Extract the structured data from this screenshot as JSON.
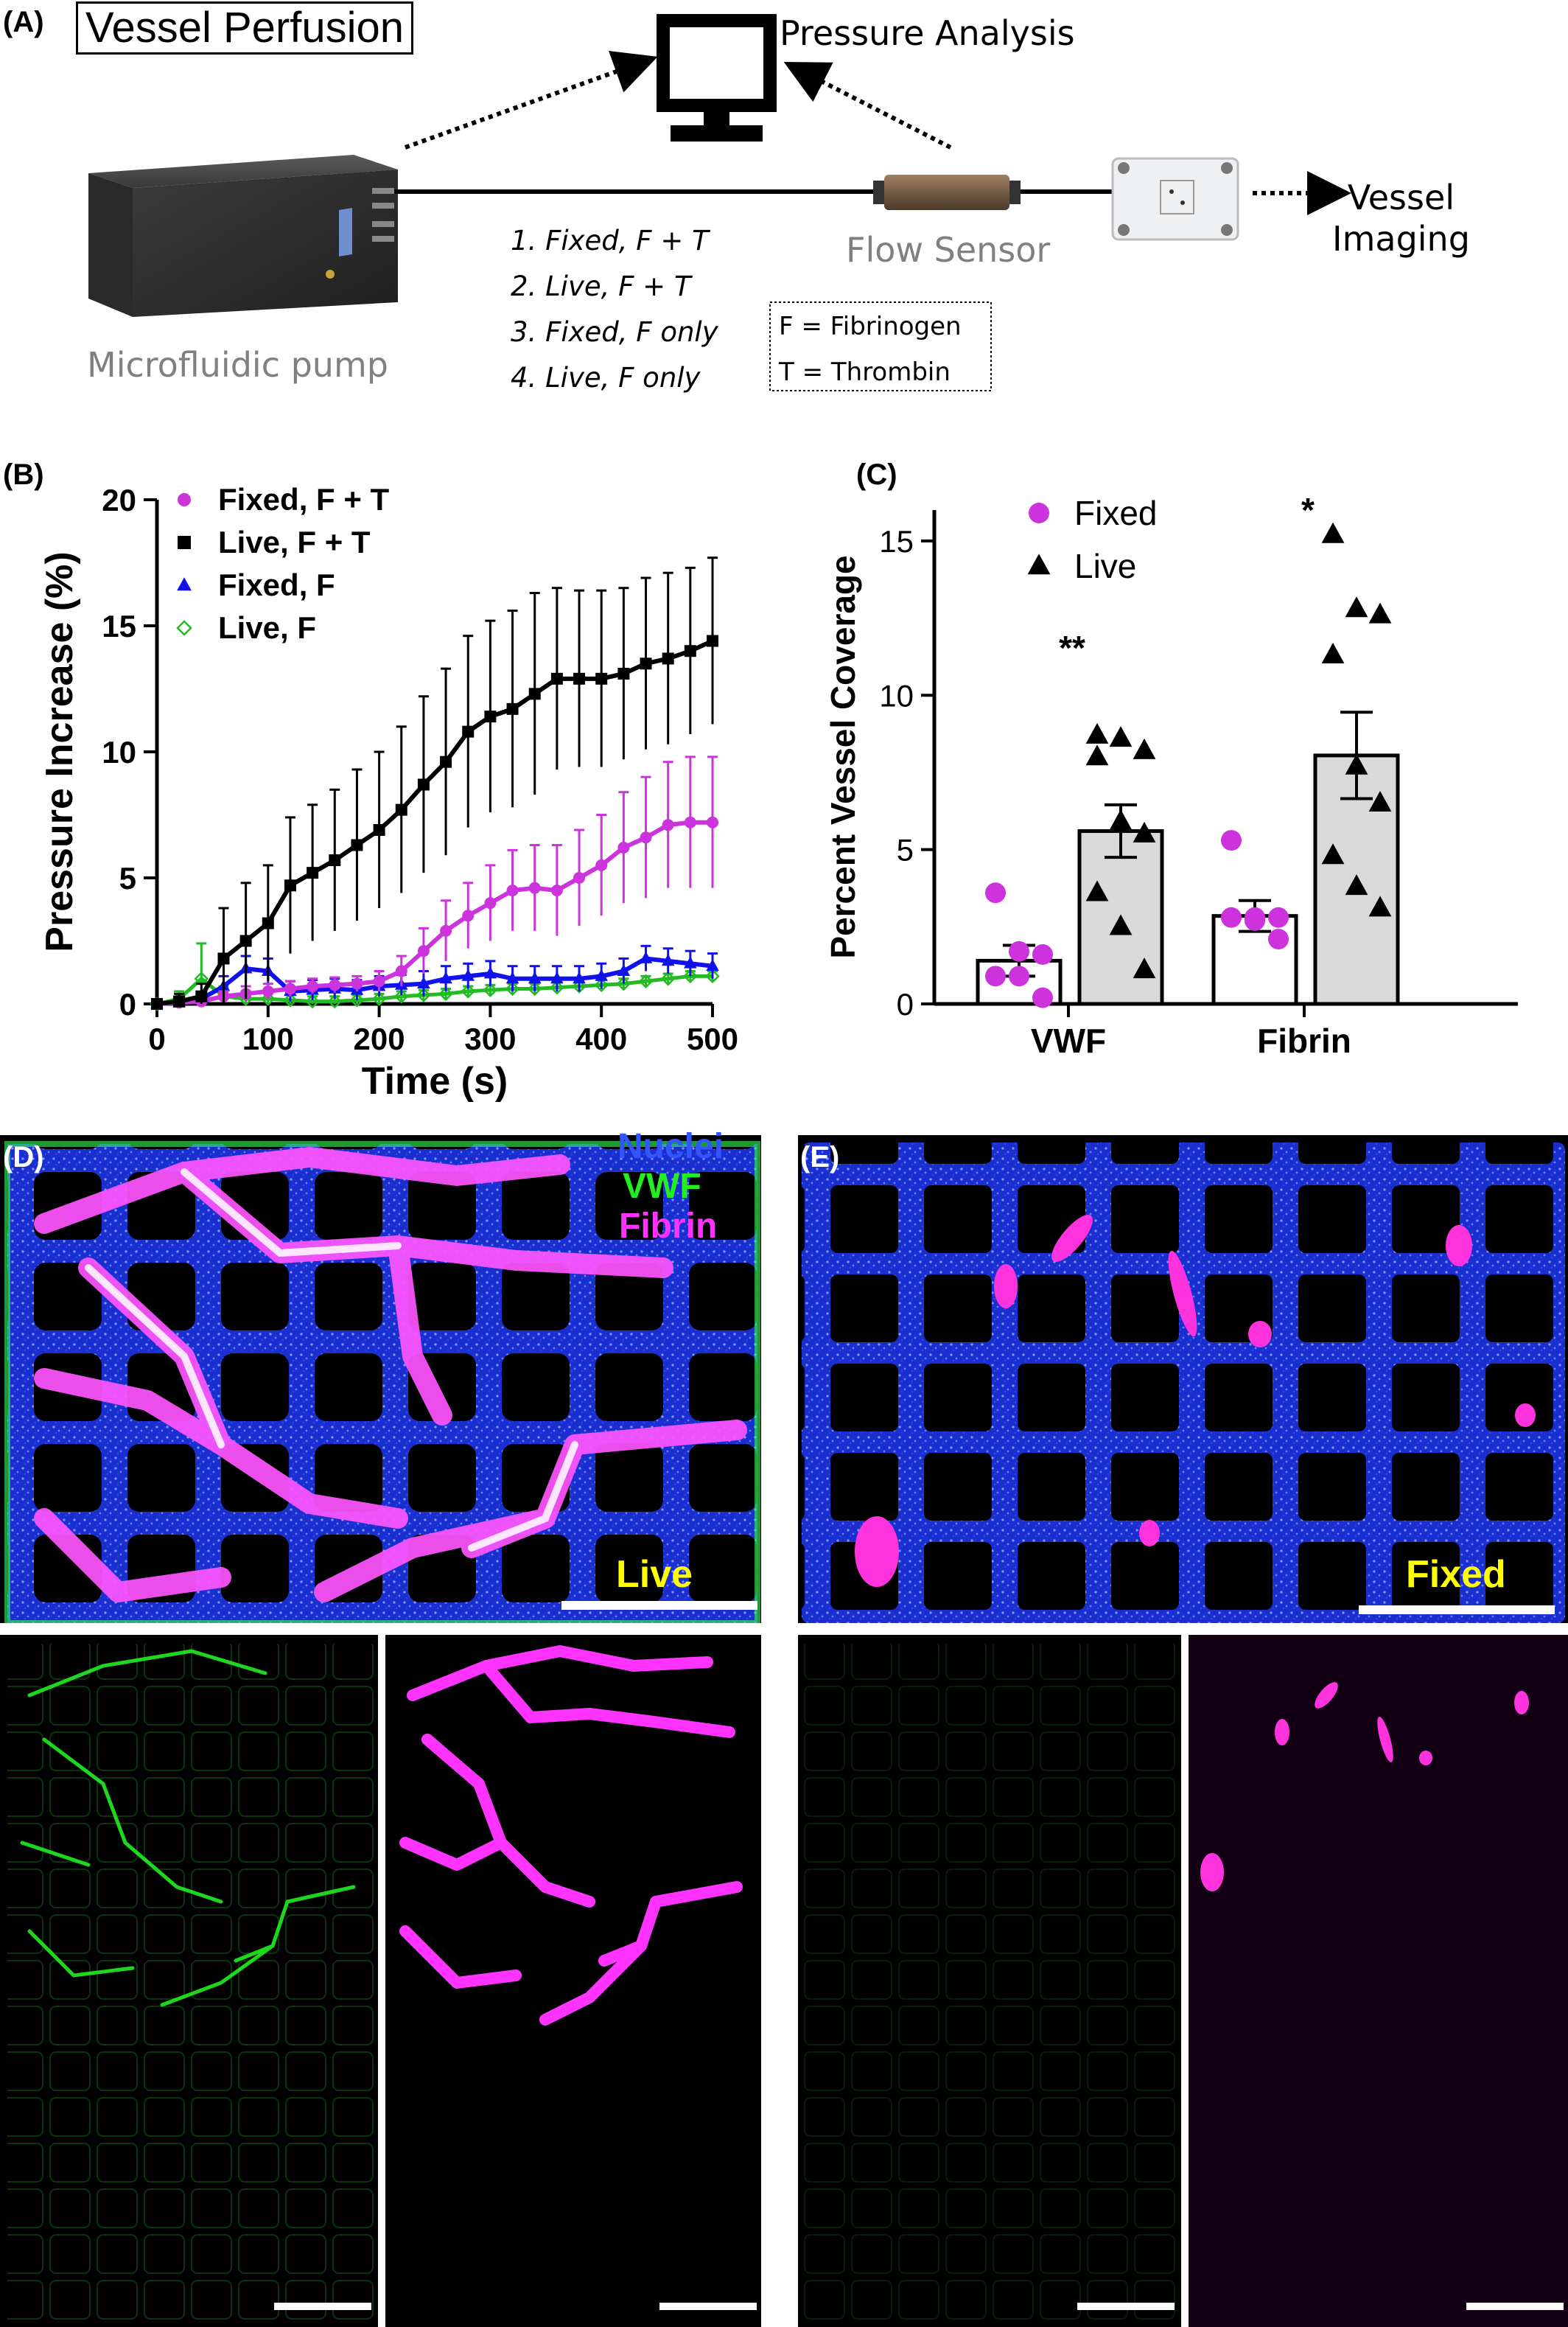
{
  "panelA": {
    "label": "(A)",
    "title": "Vessel Perfusion",
    "pressure_analysis": "Pressure Analysis",
    "flow_sensor": "Flow Sensor",
    "vessel_imaging_line1": "Vessel",
    "vessel_imaging_line2": "Imaging",
    "pump_label": "Microfluidic pump",
    "conditions": [
      "1. Fixed, F + T",
      "2. Live, F + T",
      "3. Fixed, F only",
      "4. Live, F only"
    ],
    "legend": [
      "F = Fibrinogen",
      "T = Thrombin"
    ]
  },
  "panelB": {
    "label": "(B)"
  },
  "panelC": {
    "label": "(C)"
  },
  "panelD": {
    "label": "(D)",
    "stains": [
      "Nuclei",
      "VWF",
      "Fibrin"
    ],
    "condition": "Live"
  },
  "panelE": {
    "label": "(E)",
    "condition": "Fixed"
  },
  "colors": {
    "magenta": "#cc33dd",
    "fibrin": "#ff33ff",
    "vwf": "#22ee22",
    "nuclei": "#3355ff",
    "yellow": "#ffff00",
    "blue_marker": "#1111ee",
    "green_marker": "#22bb22"
  },
  "chart_data": [
    {
      "type": "line",
      "xlabel": "Time (s)",
      "ylabel": "Pressure Increase (%)",
      "xlim": [
        0,
        500
      ],
      "ylim": [
        0,
        20
      ],
      "xticks": [
        0,
        100,
        200,
        300,
        400,
        500
      ],
      "yticks": [
        0,
        5,
        10,
        15,
        20
      ],
      "legend_position": "top-left",
      "x": [
        0,
        20,
        40,
        60,
        80,
        100,
        120,
        140,
        160,
        180,
        200,
        220,
        240,
        260,
        280,
        300,
        320,
        340,
        360,
        380,
        400,
        420,
        440,
        460,
        480,
        500
      ],
      "series": [
        {
          "name": "Fixed, F + T",
          "marker": "circle",
          "color": "#cc33dd",
          "values": [
            0,
            0.05,
            0.1,
            0.3,
            0.4,
            0.5,
            0.6,
            0.7,
            0.75,
            0.8,
            0.9,
            1.3,
            2.1,
            2.9,
            3.5,
            4.0,
            4.5,
            4.6,
            4.5,
            5.0,
            5.5,
            6.2,
            6.6,
            7.1,
            7.2,
            7.2
          ],
          "errors": [
            0,
            0.1,
            0.1,
            0.2,
            0.3,
            0.3,
            0.3,
            0.3,
            0.3,
            0.3,
            0.4,
            0.6,
            0.9,
            1.2,
            1.3,
            1.5,
            1.6,
            1.7,
            1.8,
            1.9,
            2.0,
            2.2,
            2.4,
            2.5,
            2.6,
            2.6
          ]
        },
        {
          "name": "Live, F + T",
          "marker": "square",
          "color": "#000000",
          "values": [
            0,
            0.1,
            0.3,
            1.8,
            2.5,
            3.2,
            4.7,
            5.2,
            5.7,
            6.3,
            6.9,
            7.7,
            8.7,
            9.6,
            10.8,
            11.4,
            11.7,
            12.3,
            12.9,
            12.9,
            12.9,
            13.1,
            13.5,
            13.7,
            14.0,
            14.4
          ],
          "errors": [
            0,
            0.3,
            0.5,
            2.0,
            2.3,
            2.3,
            2.7,
            2.7,
            2.8,
            3.0,
            3.1,
            3.3,
            3.5,
            3.7,
            3.8,
            3.8,
            3.9,
            4.0,
            3.6,
            3.5,
            3.5,
            3.4,
            3.4,
            3.4,
            3.3,
            3.3
          ]
        },
        {
          "name": "Fixed, F",
          "marker": "triangle",
          "color": "#1111ee",
          "values": [
            0,
            0.05,
            0.2,
            0.7,
            1.4,
            1.3,
            0.5,
            0.55,
            0.6,
            0.55,
            0.7,
            0.75,
            0.8,
            1.0,
            1.1,
            1.2,
            1.0,
            1.0,
            1.0,
            1.0,
            1.1,
            1.3,
            1.8,
            1.7,
            1.6,
            1.5
          ],
          "errors": [
            0,
            0.1,
            0.2,
            0.4,
            0.5,
            0.5,
            0.4,
            0.4,
            0.4,
            0.4,
            0.4,
            0.4,
            0.5,
            0.5,
            0.5,
            0.5,
            0.5,
            0.5,
            0.5,
            0.5,
            0.5,
            0.5,
            0.5,
            0.5,
            0.5,
            0.5
          ]
        },
        {
          "name": "Live, F",
          "marker": "diamond-open",
          "color": "#22bb22",
          "values": [
            0,
            0.2,
            1.0,
            0.3,
            0.2,
            0.2,
            0.15,
            0.1,
            0.1,
            0.15,
            0.2,
            0.3,
            0.35,
            0.4,
            0.5,
            0.55,
            0.6,
            0.6,
            0.65,
            0.7,
            0.75,
            0.8,
            0.9,
            1.0,
            1.1,
            1.1
          ],
          "errors": [
            0,
            0.3,
            1.4,
            0.4,
            0.3,
            0.3,
            0.3,
            0.2,
            0.2,
            0.2,
            0.2,
            0.2,
            0.2,
            0.2,
            0.2,
            0.2,
            0.2,
            0.2,
            0.2,
            0.2,
            0.2,
            0.2,
            0.2,
            0.2,
            0.2,
            0.2
          ]
        }
      ]
    },
    {
      "type": "bar",
      "ylabel": "Percent Vessel Coverage",
      "ylim": [
        0,
        16
      ],
      "yticks": [
        0,
        5,
        10,
        15
      ],
      "categories": [
        "VWF",
        "Fibrin"
      ],
      "significance": [
        "**",
        "*"
      ],
      "legend_position": "top-left",
      "series": [
        {
          "name": "Fixed",
          "marker": "circle",
          "color": "#cc33dd",
          "bar_fill": "#ffffff",
          "values": [
            1.4,
            2.85
          ],
          "errors": [
            0.5,
            0.5
          ],
          "points": [
            [
              3.6,
              1.7,
              1.6,
              0.9,
              0.9,
              0.2
            ],
            [
              5.3,
              2.8,
              2.8,
              2.8,
              2.7,
              2.1
            ]
          ]
        },
        {
          "name": "Live",
          "marker": "triangle",
          "color": "#000000",
          "bar_fill": "#d9d9d9",
          "values": [
            5.6,
            8.05
          ],
          "errors": [
            0.85,
            1.4
          ],
          "points": [
            [
              8.7,
              8.6,
              8.2,
              8.0,
              5.9,
              5.5,
              3.6,
              2.5,
              1.1
            ],
            [
              15.2,
              12.8,
              12.6,
              11.3,
              7.7,
              6.5,
              4.8,
              3.8,
              3.1
            ]
          ]
        }
      ]
    }
  ]
}
